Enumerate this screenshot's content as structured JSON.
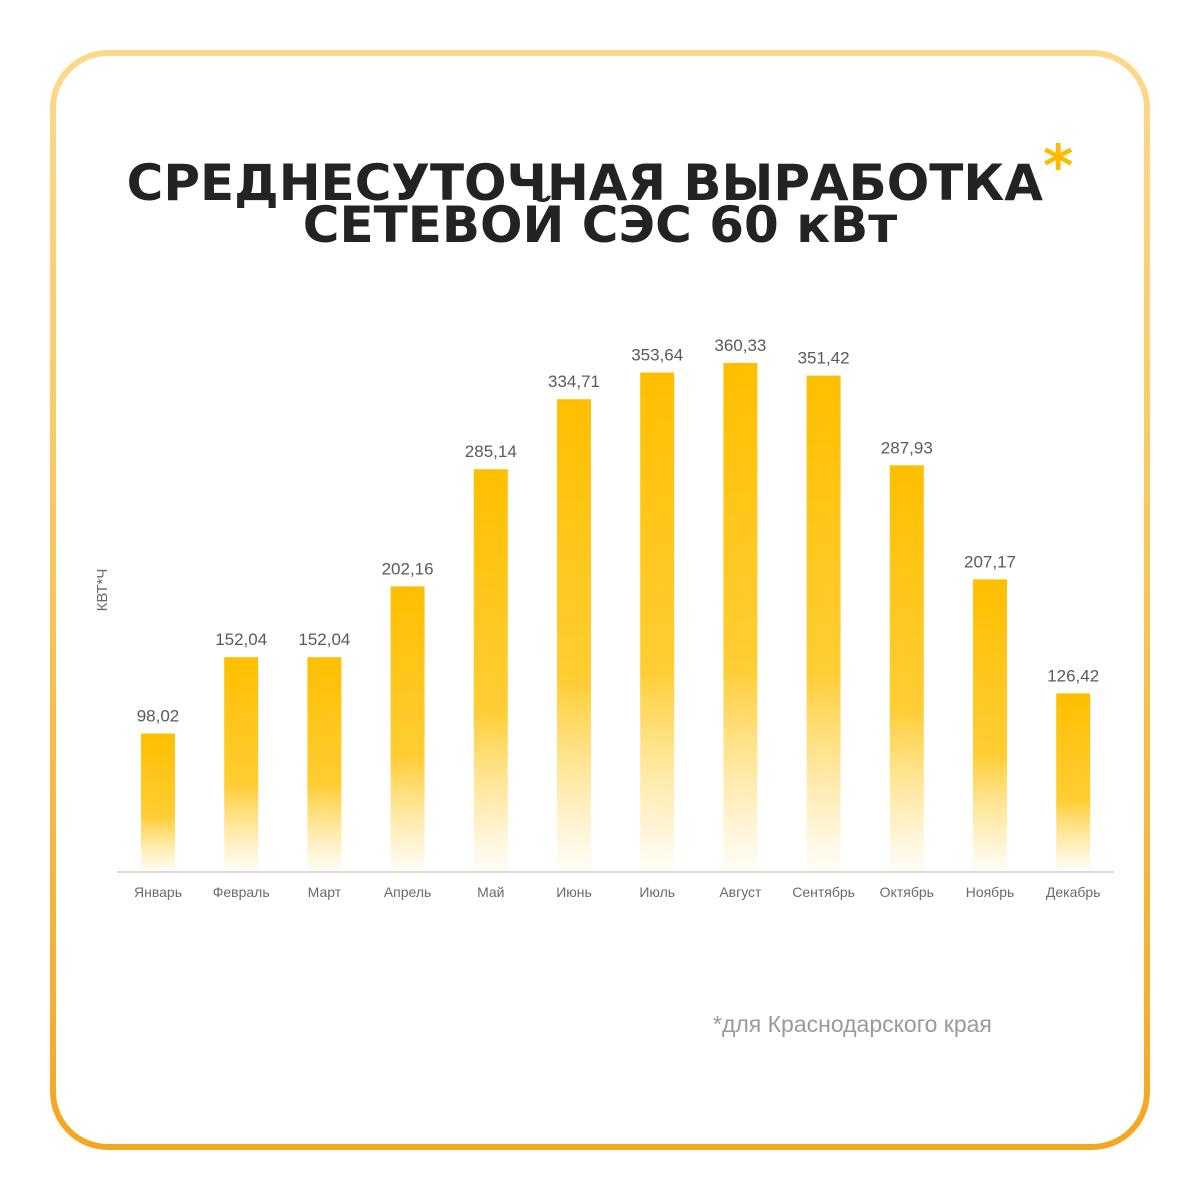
{
  "colors": {
    "bar": "#ffbf00",
    "frame_top": "#fcd98a",
    "frame_bottom": "#f5a623",
    "asterisk": "#ffba00",
    "title": "#232323",
    "axis": "#cfcfcf"
  },
  "header": {
    "title_line1": "СРЕДНЕСУТОЧНАЯ ВЫРАБОТКА",
    "asterisk": "*",
    "title_line2": "СЕТЕВОЙ СЭС 60 кВт"
  },
  "footnote": "*для Краснодарского края",
  "chart_data": {
    "type": "bar",
    "categories": [
      "Январь",
      "Февраль",
      "Март",
      "Апрель",
      "Май",
      "Июнь",
      "Июль",
      "Август",
      "Сентябрь",
      "Октябрь",
      "Ноябрь",
      "Декабрь"
    ],
    "values": [
      98.02,
      152.04,
      152.04,
      202.16,
      285.14,
      334.71,
      353.64,
      360.33,
      351.42,
      287.93,
      207.17,
      126.42
    ],
    "value_labels": [
      "98,02",
      "152,04",
      "152,04",
      "202,16",
      "285,14",
      "334,71",
      "353,64",
      "360,33",
      "351,42",
      "287,93",
      "207,17",
      "126,42"
    ],
    "ylabel": "КВТ*Ч",
    "xlabel": "",
    "ylim": [
      0,
      360.33
    ],
    "grid": false,
    "legend": "none"
  }
}
